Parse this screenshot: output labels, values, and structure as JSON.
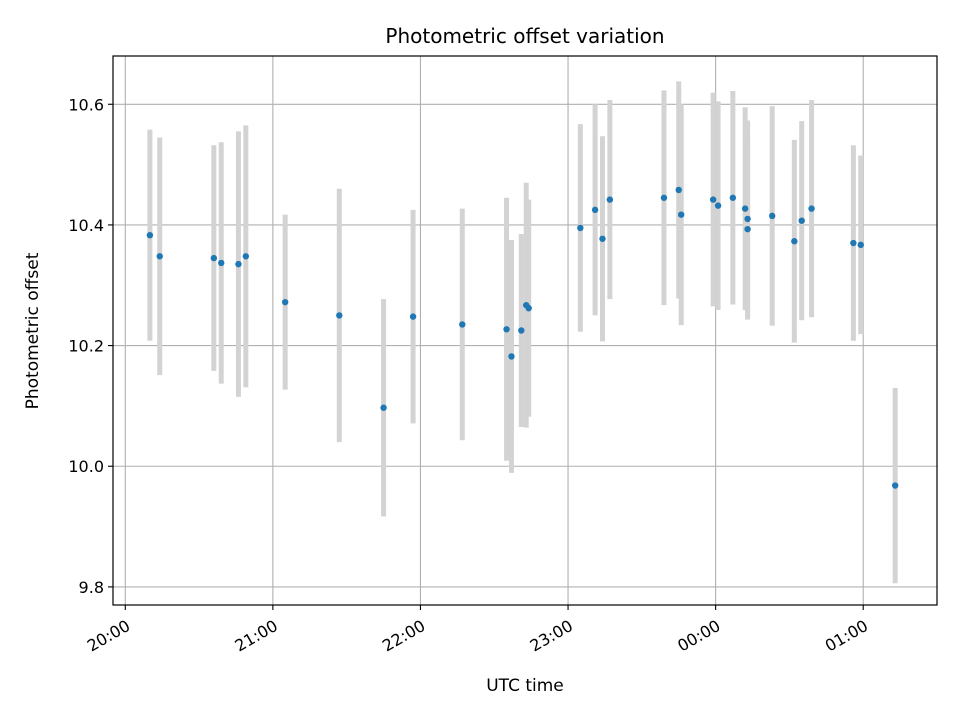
{
  "chart_data": {
    "type": "scatter",
    "title": "Photometric offset variation",
    "xlabel": "UTC time",
    "ylabel": "Photometric offset",
    "x_axis_kind": "time",
    "xlim": [
      "19:55",
      "01:30"
    ],
    "ylim": [
      9.77,
      10.68
    ],
    "x_tick_labels": [
      "20:00",
      "21:00",
      "22:00",
      "23:00",
      "00:00",
      "01:00"
    ],
    "y_ticks": [
      9.8,
      10.0,
      10.2,
      10.4,
      10.6
    ],
    "y_tick_labels": [
      "9.8",
      "10.0",
      "10.2",
      "10.4",
      "10.6"
    ],
    "grid": true,
    "colors": {
      "point": "#1f77b4",
      "errorbar": "#d3d3d3",
      "grid": "#b0b0b0"
    },
    "series": [
      {
        "points": [
          {
            "x": "20:10",
            "y": 10.383,
            "err": 0.175
          },
          {
            "x": "20:14",
            "y": 10.348,
            "err": 0.197
          },
          {
            "x": "20:36",
            "y": 10.345,
            "err": 0.187
          },
          {
            "x": "20:39",
            "y": 10.337,
            "err": 0.2
          },
          {
            "x": "20:46",
            "y": 10.335,
            "err": 0.22
          },
          {
            "x": "20:49",
            "y": 10.348,
            "err": 0.217
          },
          {
            "x": "21:05",
            "y": 10.272,
            "err": 0.145
          },
          {
            "x": "21:27",
            "y": 10.25,
            "err": 0.21
          },
          {
            "x": "21:45",
            "y": 10.097,
            "err": 0.18
          },
          {
            "x": "21:57",
            "y": 10.248,
            "err": 0.177
          },
          {
            "x": "22:17",
            "y": 10.235,
            "err": 0.192
          },
          {
            "x": "22:35",
            "y": 10.227,
            "err": 0.218
          },
          {
            "x": "22:37",
            "y": 10.182,
            "err": 0.193
          },
          {
            "x": "22:41",
            "y": 10.225,
            "err": 0.16
          },
          {
            "x": "22:43",
            "y": 10.267,
            "err": 0.203
          },
          {
            "x": "22:44",
            "y": 10.262,
            "err": 0.18
          },
          {
            "x": "23:05",
            "y": 10.395,
            "err": 0.172
          },
          {
            "x": "23:11",
            "y": 10.425,
            "err": 0.175
          },
          {
            "x": "23:14",
            "y": 10.377,
            "err": 0.17
          },
          {
            "x": "23:17",
            "y": 10.442,
            "err": 0.165
          },
          {
            "x": "23:39",
            "y": 10.445,
            "err": 0.178
          },
          {
            "x": "23:45",
            "y": 10.458,
            "err": 0.18
          },
          {
            "x": "23:46",
            "y": 10.417,
            "err": 0.183
          },
          {
            "x": "23:59",
            "y": 10.442,
            "err": 0.177
          },
          {
            "x": "00:01",
            "y": 10.432,
            "err": 0.173
          },
          {
            "x": "00:07",
            "y": 10.445,
            "err": 0.177
          },
          {
            "x": "00:12",
            "y": 10.427,
            "err": 0.168
          },
          {
            "x": "00:13",
            "y": 10.393,
            "err": 0.15
          },
          {
            "x": "00:13",
            "y": 10.41,
            "err": 0.163
          },
          {
            "x": "00:23",
            "y": 10.415,
            "err": 0.182
          },
          {
            "x": "00:32",
            "y": 10.373,
            "err": 0.168
          },
          {
            "x": "00:35",
            "y": 10.407,
            "err": 0.165
          },
          {
            "x": "00:39",
            "y": 10.427,
            "err": 0.18
          },
          {
            "x": "00:56",
            "y": 10.37,
            "err": 0.162
          },
          {
            "x": "00:59",
            "y": 10.367,
            "err": 0.148
          },
          {
            "x": "01:13",
            "y": 9.968,
            "err": 0.162
          }
        ]
      }
    ]
  }
}
